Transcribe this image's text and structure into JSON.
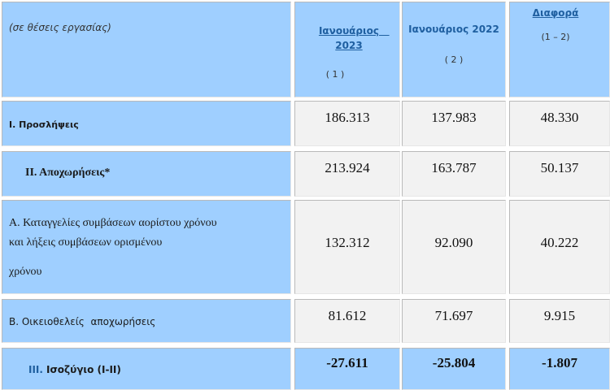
{
  "header": {
    "note": "(σε θέσεις εργασίας)",
    "columns": [
      {
        "title": "Ιανουάριος   2023",
        "sub": "( 1 )"
      },
      {
        "title": "Ιανουάριος 2022",
        "sub": "( 2 )"
      },
      {
        "title": "Διαφορά",
        "sub": "(1 – 2)"
      }
    ]
  },
  "rows": [
    {
      "label": [
        "Ι. Προσλήψεις"
      ],
      "values": [
        "186.313",
        "137.983",
        "48.330"
      ]
    },
    {
      "label": [
        "ΙΙ. Αποχωρήσεις*"
      ],
      "values": [
        "213.924",
        "163.787",
        "50.137"
      ]
    },
    {
      "label": [
        "Α. Καταγγελίες συμβάσεων αορίστου χρόνου",
        "και λήξεις συμβάσεων ορισμένου",
        "χρόνου"
      ],
      "values": [
        "132.312",
        "92.090",
        "40.222"
      ]
    },
    {
      "label": [
        "Β. Οικειοθελείς  αποχωρήσεις"
      ],
      "values": [
        "81.612",
        "71.697",
        "9.915"
      ]
    },
    {
      "label": [
        "ΙΙΙ.",
        "Ισοζύγιο (Ι-ΙΙ)"
      ],
      "values": [
        "-27.611",
        "-25.804",
        "-1.807"
      ]
    }
  ]
}
